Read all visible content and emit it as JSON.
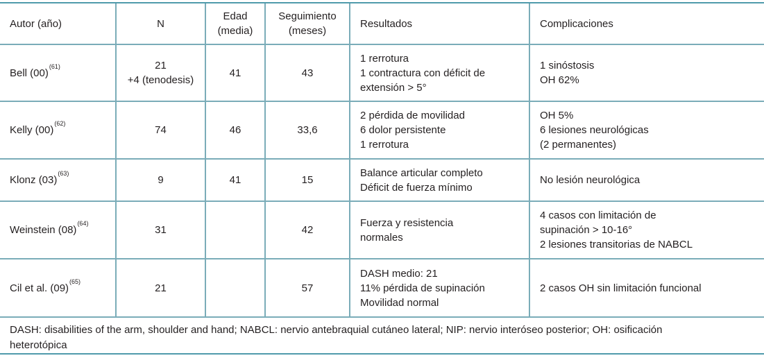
{
  "colors": {
    "line": "#7aacb8",
    "line-outer": "#4f9aab",
    "text": "#231f20",
    "bg": "#ffffff"
  },
  "table": {
    "headers": {
      "author": "Autor (año)",
      "n": "N",
      "age": "Edad\n(media)",
      "followup": "Seguimiento\n(meses)",
      "results": "Resultados",
      "complications": "Complicaciones"
    },
    "rows": [
      {
        "author": "Bell (00)",
        "ref": "(61)",
        "n": "21\n+4 (tenodesis)",
        "age": "41",
        "followup": "43",
        "results": "1 rerrotura\n1 contractura con déficit de\nextensión > 5°",
        "complications": "1 sinóstosis\nOH 62%"
      },
      {
        "author": "Kelly (00)",
        "ref": "(62)",
        "n": "74",
        "age": "46",
        "followup": "33,6",
        "results": "2 pérdida de movilidad\n6 dolor persistente\n1 rerrotura",
        "complications": "OH 5%\n6 lesiones neurológicas\n(2 permanentes)"
      },
      {
        "author": "Klonz (03)",
        "ref": "(63)",
        "n": "9",
        "age": "41",
        "followup": "15",
        "results": "Balance articular completo\nDéficit de fuerza mínimo",
        "complications": "No lesión neurológica"
      },
      {
        "author": "Weinstein (08)",
        "ref": "(64)",
        "n": "31",
        "age": "",
        "followup": "42",
        "results": "Fuerza y resistencia\nnormales",
        "complications": "4 casos con limitación de\nsupinación > 10-16°\n2 lesiones transitorias de NABCL"
      },
      {
        "author": "Cil et al. (09)",
        "ref": "(65)",
        "n": "21",
        "age": "",
        "followup": "57",
        "results": "DASH medio: 21\n11% pérdida de supinación\nMovilidad normal",
        "complications": "2 casos OH sin limitación funcional"
      }
    ],
    "footnote": "DASH: disabilities of the arm, shoulder and hand; NABCL: nervio antebraquial cutáneo lateral; NIP: nervio interóseo posterior; OH: osificación\nheterotópica"
  }
}
